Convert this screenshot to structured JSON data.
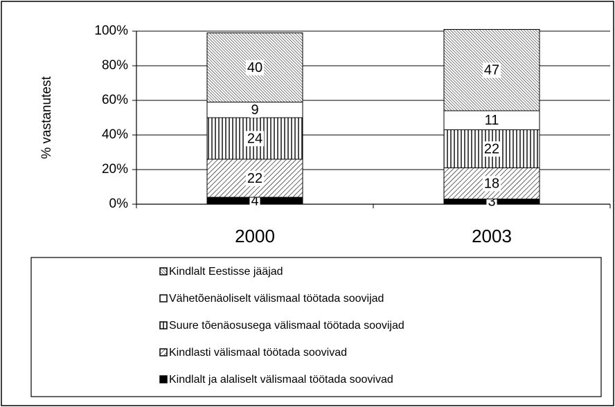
{
  "chart_data": {
    "type": "stacked-bar",
    "y_label": "% vastanutest",
    "categories": [
      "2000",
      "2003"
    ],
    "series": [
      {
        "name": "Kindlalt ja alaliselt välismaal töötada soovivad",
        "color": "#000000",
        "pattern": "solid",
        "values": [
          4,
          3
        ]
      },
      {
        "name": "Kindlasti välismaal töötada soovivad",
        "color": "#000000",
        "pattern": "diagonal-sparse",
        "values": [
          22,
          18
        ]
      },
      {
        "name": "Suure tõenäosusega välismaal töötada soovijad",
        "color": "#000000",
        "pattern": "vertical",
        "values": [
          24,
          22
        ]
      },
      {
        "name": "Vähetõenäoliselt välismaal töötada soovijad",
        "color": "#000000",
        "pattern": "none",
        "values": [
          9,
          11
        ]
      },
      {
        "name": "Kindlalt Eestisse jääjad",
        "color": "#000000",
        "pattern": "diagonal-dense",
        "values": [
          40,
          47
        ]
      }
    ],
    "ylim": [
      0,
      100
    ],
    "yticks": [
      {
        "value": 0,
        "label": "0%"
      },
      {
        "value": 20,
        "label": "20%"
      },
      {
        "value": 40,
        "label": "40%"
      },
      {
        "value": 60,
        "label": "60%"
      },
      {
        "value": 80,
        "label": "80%"
      },
      {
        "value": 100,
        "label": "100%"
      }
    ],
    "grid": true
  }
}
